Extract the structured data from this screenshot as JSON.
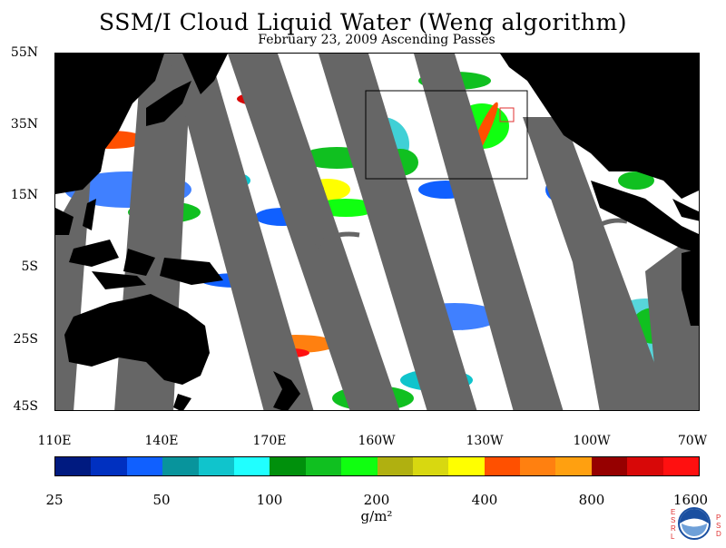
{
  "title": "SSM/I Cloud Liquid Water (Weng algorithm)",
  "subtitle": "February 23, 2009  Ascending Passes",
  "latitude_labels": [
    "55N",
    "35N",
    "15N",
    "5S",
    "25S",
    "45S"
  ],
  "longitude_labels": [
    "110E",
    "140E",
    "170E",
    "160W",
    "130W",
    "100W",
    "70W"
  ],
  "colorbar": {
    "colors": [
      "#001a80",
      "#0030c0",
      "#1060ff",
      "#08949c",
      "#10c4cc",
      "#20ffff",
      "#00900c",
      "#10c020",
      "#10ff10",
      "#b0b010",
      "#d8d810",
      "#ffff00",
      "#ff5000",
      "#ff8010",
      "#ffa010",
      "#960000",
      "#d80808",
      "#ff1010"
    ],
    "tick_labels": [
      "25",
      "50",
      "100",
      "200",
      "400",
      "800",
      "1600"
    ],
    "units": "g/m²"
  },
  "map_colors": {
    "land": "#000000",
    "no_data_swath": "#666666",
    "ocean_clear": "#ffffff"
  },
  "logo": {
    "left_letters": "E S R L",
    "right_letters": "P S D",
    "emblem": "NOAA"
  }
}
